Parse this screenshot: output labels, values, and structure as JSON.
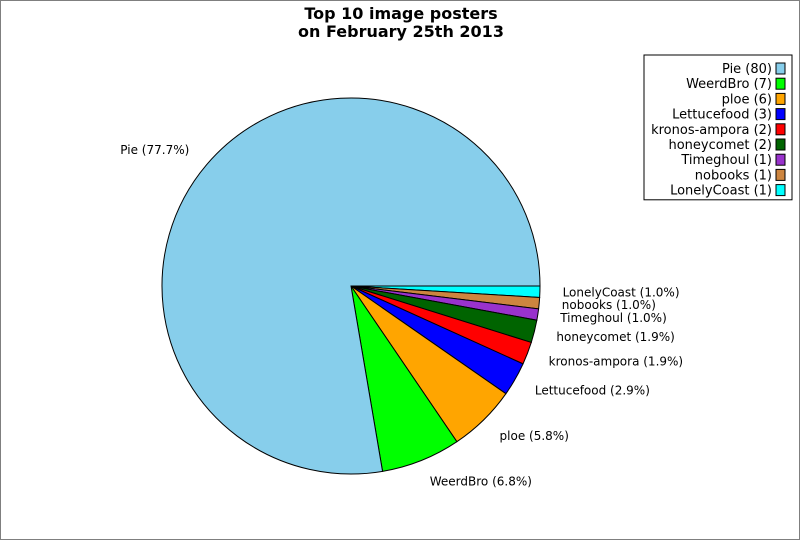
{
  "chart_data": {
    "type": "pie",
    "title": [
      "Top 10 image posters",
      "on February 25th 2013"
    ],
    "legend_position": "top-right",
    "slices": [
      {
        "name": "Pie",
        "count": 80,
        "percent_label": "Pie (77.7%)",
        "legend_label": "Pie (80)",
        "color": "#87ceeb"
      },
      {
        "name": "WeerdBro",
        "count": 7,
        "percent_label": "WeerdBro (6.8%)",
        "legend_label": "WeerdBro (7)",
        "color": "#00ff00"
      },
      {
        "name": "ploe",
        "count": 6,
        "percent_label": "ploe (5.8%)",
        "legend_label": "ploe (6)",
        "color": "#ffa500"
      },
      {
        "name": "Lettucefood",
        "count": 3,
        "percent_label": "Lettucefood (2.9%)",
        "legend_label": "Lettucefood (3)",
        "color": "#0000ff"
      },
      {
        "name": "kronos-ampora",
        "count": 2,
        "percent_label": "kronos-ampora (1.9%)",
        "legend_label": "kronos-ampora (2)",
        "color": "#ff0000"
      },
      {
        "name": "honeycomet",
        "count": 2,
        "percent_label": "honeycomet (1.9%)",
        "legend_label": "honeycomet (2)",
        "color": "#006400"
      },
      {
        "name": "Timeghoul",
        "count": 1,
        "percent_label": "Timeghoul (1.0%)",
        "legend_label": "Timeghoul (1)",
        "color": "#9932cc"
      },
      {
        "name": "nobooks",
        "count": 1,
        "percent_label": "nobooks (1.0%)",
        "legend_label": "nobooks (1)",
        "color": "#cd853f"
      },
      {
        "name": "LonelyCoast",
        "count": 1,
        "percent_label": "LonelyCoast (1.0%)",
        "legend_label": "LonelyCoast (1)",
        "color": "#00ffff"
      }
    ]
  }
}
